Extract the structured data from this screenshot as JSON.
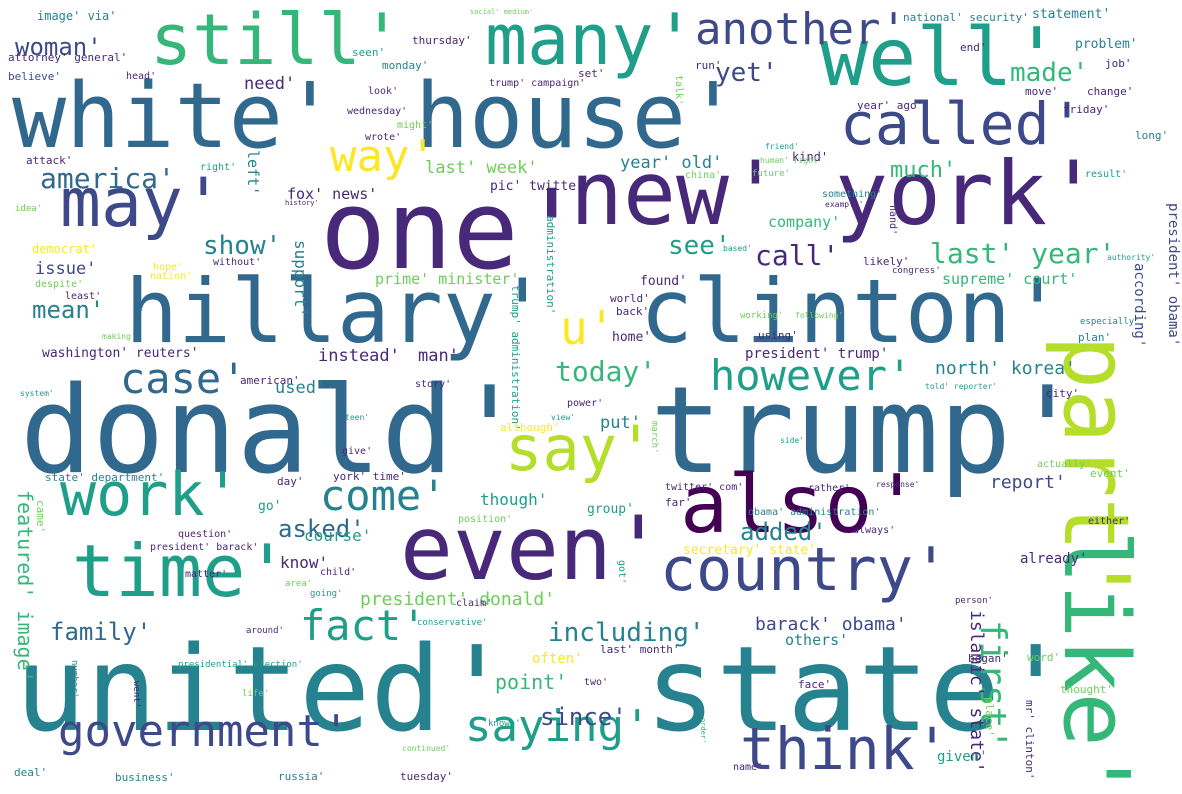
{
  "word_cloud": {
    "colors": {
      "purple_dark": "#440154",
      "purple": "#482878",
      "indigo": "#3e4989",
      "blue": "#31688e",
      "teal_blue": "#26828e",
      "teal": "#1f9e89",
      "green_teal": "#35b779",
      "green": "#6ece58",
      "lime": "#b5de2b",
      "yellow": "#fde725"
    },
    "words": [
      "donald'",
      "trump'",
      "united'",
      "state'",
      "one'",
      "new'",
      "york'",
      "white'",
      "house'",
      "hillary'",
      "clinton'",
      "like'",
      "part'",
      "even'",
      "also'",
      "well'",
      "many'",
      "still'",
      "time'",
      "country'",
      "work'",
      "think'",
      "government'",
      "saying'",
      "say'",
      "may'",
      "called'",
      "come'",
      "case'",
      "fact'",
      "however'",
      "another'",
      "way'",
      "u'",
      "first'",
      "today'",
      "america'",
      "woman'",
      "made'",
      "yet'",
      "see'",
      "call'",
      "last' year'",
      "show'",
      "much'",
      "including'",
      "family'",
      "asked'",
      "added'",
      "since'",
      "point'",
      "barack' obama'",
      "islamic' state'",
      "report'",
      "mean'",
      "featured' image'",
      "president' donald'",
      "north' korea'",
      "president' trump'",
      "fox' news'",
      "need'",
      "last' week'",
      "year' old'",
      "company'",
      "supreme' court'",
      "prime' minister'",
      "washington' reuters'",
      "instead'",
      "man'",
      "used'",
      "put'",
      "though'",
      "know'",
      "course'",
      "secretary' state'",
      "others'",
      "often'",
      "given'",
      "began'",
      "already'",
      "president' obama'",
      "according'",
      "statement'",
      "problem'",
      "issue'",
      "left'",
      "support'",
      "pic' twitter'",
      "home'",
      "found'",
      "group'",
      "go'",
      "day'",
      "york' time'",
      "twitter' com'",
      "obama' administration'",
      "president' barack'",
      "question'",
      "democrat'",
      "image' via'",
      "attorney' general'",
      "believe'",
      "head'",
      "thursday'",
      "monday'",
      "set'",
      "trump' campaign'",
      "wednesday'",
      "might'",
      "wrote'",
      "look'",
      "attack'",
      "right'",
      "china'",
      "kind'",
      "result'",
      "something'",
      "hand'",
      "future'",
      "history'",
      "idea'",
      "hope'",
      "nation'",
      "without'",
      "despite'",
      "least'",
      "world'",
      "back'",
      "using'",
      "following'",
      "making'",
      "plan'",
      "especially'",
      "authority'",
      "congress'",
      "likely'",
      "based'",
      "american'",
      "story'",
      "power'",
      "although'",
      "march'",
      "view'",
      "give'",
      "state' department'",
      "came'",
      "rather'",
      "far'",
      "response'",
      "actually'",
      "event'",
      "side'",
      "position'",
      "always'",
      "either'",
      "got'",
      "claim'",
      "matter'",
      "child'",
      "area'",
      "around'",
      "conservative'",
      "person'",
      "presidential' election'",
      "number'",
      "life'",
      "went'",
      "known'",
      "two'",
      "last' month'",
      "place'",
      "word'",
      "face'",
      "thought'",
      "mr' clinton'",
      "continued'",
      "order'",
      "name'",
      "deal'",
      "business'",
      "russia'",
      "tuesday'",
      "national' security'",
      "social' medium'",
      "seen'",
      "run'",
      "end'",
      "job'",
      "talk'",
      "move'",
      "change'",
      "friday'",
      "year' ago'",
      "long'",
      "friend'",
      "human' right'",
      "example'",
      "city'",
      "told' reporter'",
      "system'",
      "teen'",
      "going'",
      "working'",
      "administration'",
      "trump' administration'"
    ]
  }
}
